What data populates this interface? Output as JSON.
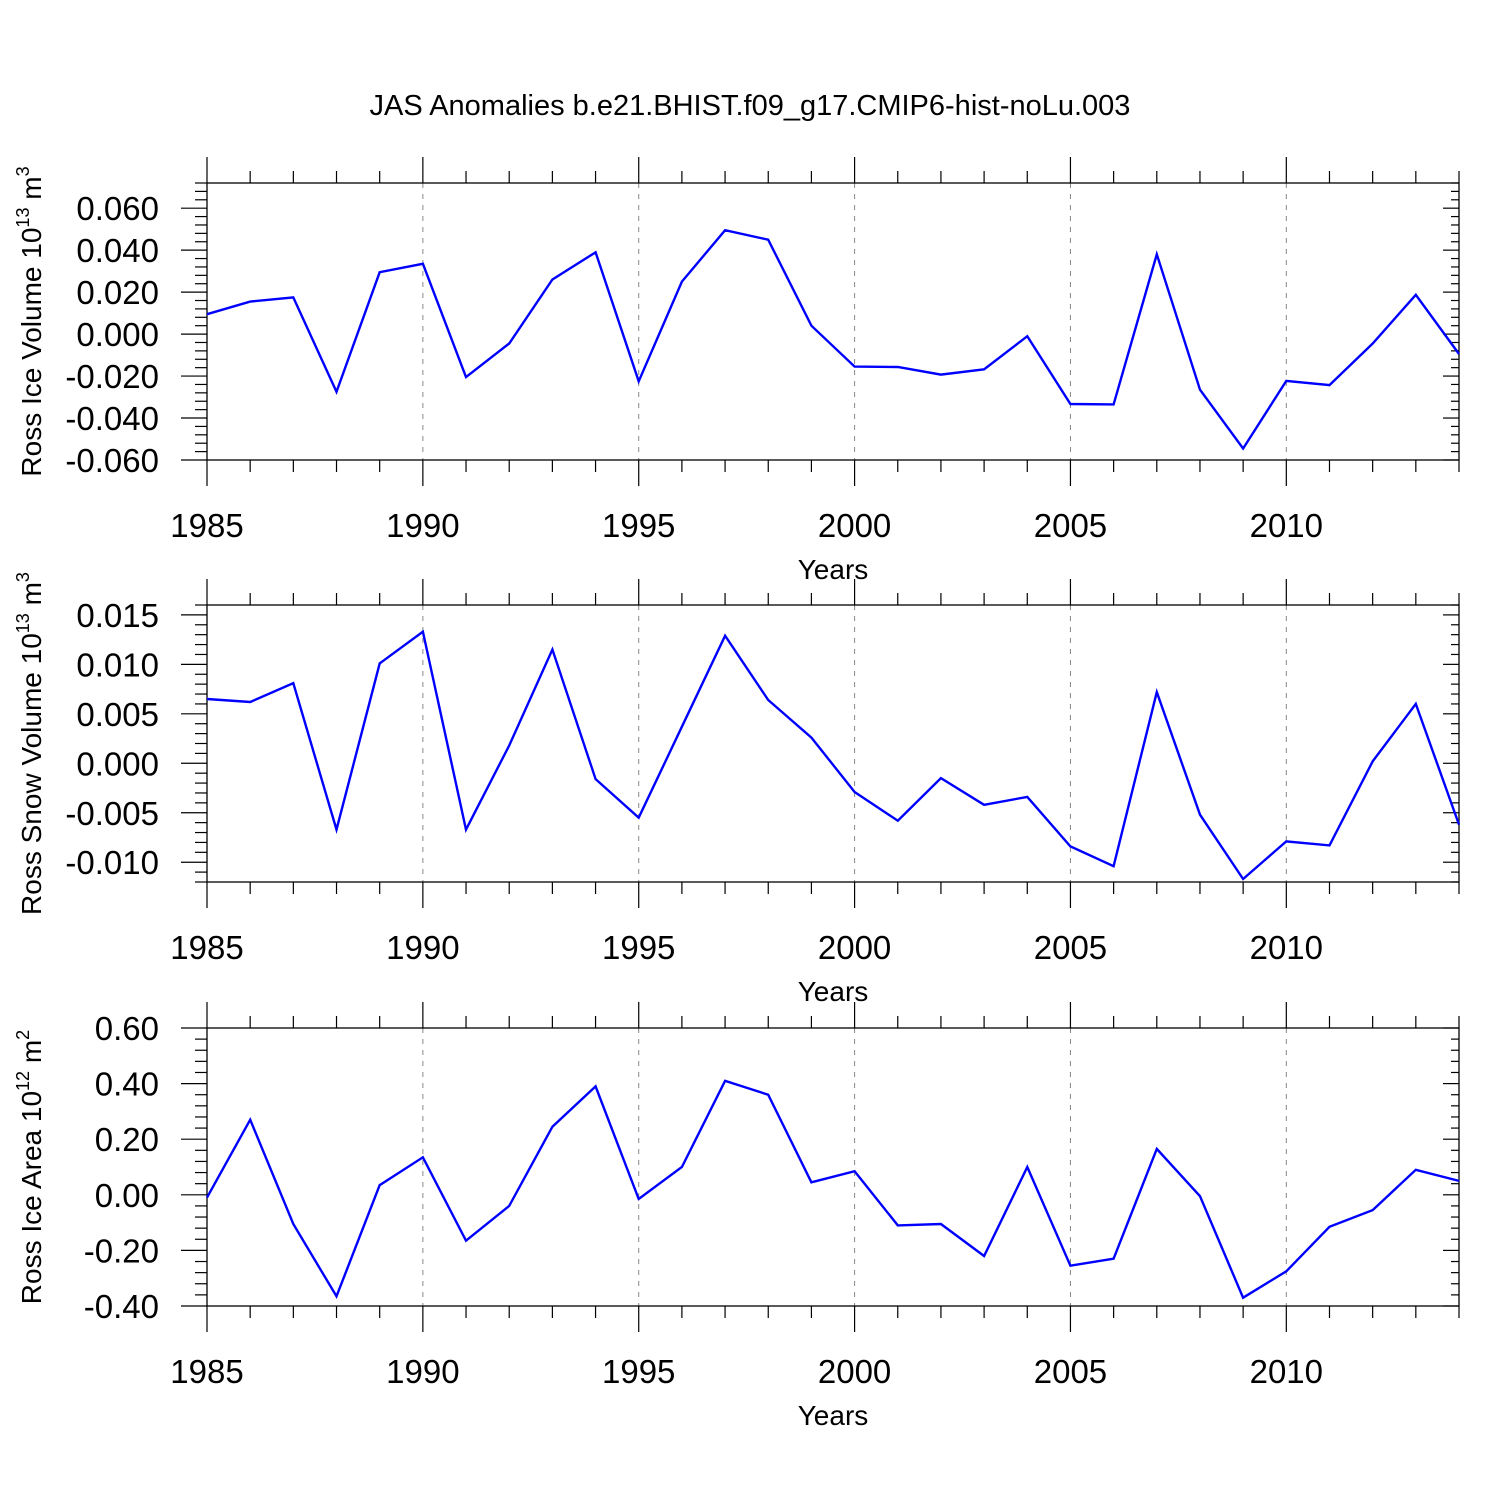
{
  "figure": {
    "title": "JAS Anomalies b.e21.BHIST.f09_g17.CMIP6-hist-noLu.003"
  },
  "colors": {
    "series": "#0000ff",
    "axes": "#000000",
    "grid": "#888888"
  },
  "chart_data": [
    {
      "type": "line",
      "xlabel": "Years",
      "ylabel": {
        "text": "Ross Ice Volume 10",
        "exp": "13",
        "unit": " m",
        "unit_exp": "3"
      },
      "xlim": [
        1985,
        2014
      ],
      "ylim": [
        -0.06,
        0.072
      ],
      "xticks": [
        1985,
        1990,
        1995,
        2000,
        2005,
        2010
      ],
      "xtick_labels": [
        "1985",
        "1990",
        "1995",
        "2000",
        "2005",
        "2010"
      ],
      "yticks": [
        -0.06,
        -0.04,
        -0.02,
        0.0,
        0.02,
        0.04,
        0.06
      ],
      "ytick_labels": [
        "-0.060",
        "-0.040",
        "-0.020",
        "0.000",
        "0.020",
        "0.040",
        "0.060"
      ],
      "grid": "vertical dashed at major x ticks",
      "x": [
        1985,
        1986,
        1987,
        1988,
        1989,
        1990,
        1991,
        1992,
        1993,
        1994,
        1995,
        1996,
        1997,
        1998,
        1999,
        2000,
        2001,
        2002,
        2003,
        2004,
        2005,
        2006,
        2007,
        2008,
        2009,
        2010,
        2011,
        2012,
        2013,
        2014
      ],
      "values": [
        0.0095,
        0.0155,
        0.0175,
        -0.0275,
        0.0295,
        0.0335,
        -0.0205,
        -0.0045,
        0.026,
        0.039,
        -0.0225,
        0.025,
        0.0495,
        0.045,
        0.004,
        -0.0155,
        -0.0157,
        -0.0193,
        -0.0168,
        -0.001,
        -0.0333,
        -0.0335,
        0.038,
        -0.0265,
        -0.0545,
        -0.0223,
        -0.0243,
        -0.0045,
        0.0187,
        -0.0095
      ]
    },
    {
      "type": "line",
      "xlabel": "Years",
      "ylabel": {
        "text": "Ross Snow Volume 10",
        "exp": "13",
        "unit": " m",
        "unit_exp": "3"
      },
      "xlim": [
        1985,
        2014
      ],
      "ylim": [
        -0.012,
        0.016
      ],
      "xticks": [
        1985,
        1990,
        1995,
        2000,
        2005,
        2010
      ],
      "xtick_labels": [
        "1985",
        "1990",
        "1995",
        "2000",
        "2005",
        "2010"
      ],
      "yticks": [
        -0.01,
        -0.005,
        0.0,
        0.005,
        0.01,
        0.015
      ],
      "ytick_labels": [
        "-0.010",
        "-0.005",
        "0.000",
        "0.005",
        "0.010",
        "0.015"
      ],
      "grid": "vertical dashed at major x ticks",
      "x": [
        1985,
        1986,
        1987,
        1988,
        1989,
        1990,
        1991,
        1992,
        1993,
        1994,
        1995,
        1996,
        1997,
        1998,
        1999,
        2000,
        2001,
        2002,
        2003,
        2004,
        2005,
        2006,
        2007,
        2008,
        2009,
        2010,
        2011,
        2012,
        2013,
        2014
      ],
      "values": [
        0.0065,
        0.0062,
        0.0081,
        -0.0067,
        0.0101,
        0.0133,
        -0.0067,
        0.0018,
        0.0115,
        -0.0016,
        -0.0055,
        0.0037,
        0.0129,
        0.0064,
        0.0026,
        -0.0029,
        -0.0058,
        -0.0015,
        -0.0042,
        -0.0034,
        -0.0084,
        -0.0104,
        0.0072,
        -0.0052,
        -0.0117,
        -0.0079,
        -0.0083,
        0.0002,
        0.006,
        -0.0062
      ]
    },
    {
      "type": "line",
      "xlabel": "Years",
      "ylabel": {
        "text": "Ross Ice Area 10",
        "exp": "12",
        "unit": " m",
        "unit_exp": "2"
      },
      "xlim": [
        1985,
        2014
      ],
      "ylim": [
        -0.4,
        0.6
      ],
      "xticks": [
        1985,
        1990,
        1995,
        2000,
        2005,
        2010
      ],
      "xtick_labels": [
        "1985",
        "1990",
        "1995",
        "2000",
        "2005",
        "2010"
      ],
      "yticks": [
        -0.4,
        -0.2,
        0.0,
        0.2,
        0.4,
        0.6
      ],
      "ytick_labels": [
        "-0.40",
        "-0.20",
        "0.00",
        "0.20",
        "0.40",
        "0.60"
      ],
      "grid": "vertical dashed at major x ticks",
      "x": [
        1985,
        1986,
        1987,
        1988,
        1989,
        1990,
        1991,
        1992,
        1993,
        1994,
        1995,
        1996,
        1997,
        1998,
        1999,
        2000,
        2001,
        2002,
        2003,
        2004,
        2005,
        2006,
        2007,
        2008,
        2009,
        2010,
        2011,
        2012,
        2013,
        2014
      ],
      "values": [
        -0.01,
        0.27,
        -0.105,
        -0.365,
        0.035,
        0.135,
        -0.165,
        -0.04,
        0.245,
        0.39,
        -0.015,
        0.1,
        0.41,
        0.36,
        0.045,
        0.085,
        -0.11,
        -0.105,
        -0.22,
        0.1,
        -0.255,
        -0.23,
        0.165,
        -0.005,
        -0.37,
        -0.275,
        -0.115,
        -0.055,
        0.09,
        0.05
      ]
    }
  ]
}
